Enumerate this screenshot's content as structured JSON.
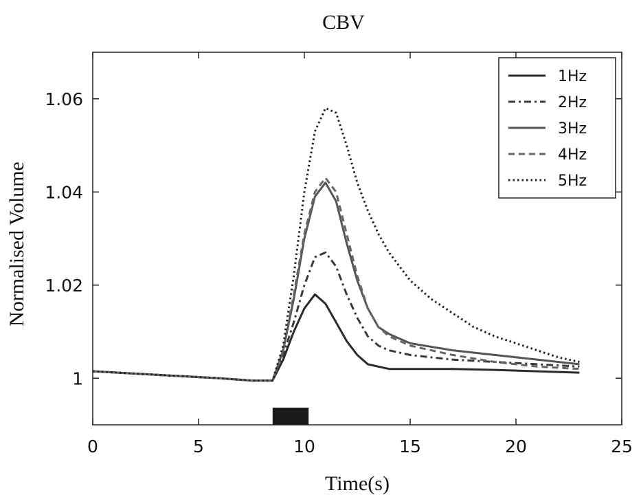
{
  "chart_data": {
    "type": "line",
    "title": "CBV",
    "xlabel": "Time(s)",
    "ylabel": "Normalised Volume",
    "xlim": [
      0,
      25
    ],
    "ylim": [
      0.99,
      1.07
    ],
    "x_ticks": [
      0,
      5,
      10,
      15,
      20,
      25
    ],
    "x_tick_labels": [
      "0",
      "5",
      "10",
      "15",
      "20",
      "25"
    ],
    "y_ticks": [
      1.0,
      1.02,
      1.04,
      1.06
    ],
    "y_tick_labels": [
      "1",
      "1.02",
      "1.04",
      "1.06"
    ],
    "grid": false,
    "legend": "top-right",
    "stimulus": {
      "start": 8.5,
      "end": 10.2
    },
    "series": [
      {
        "name": "1Hz",
        "dash": "solid",
        "color": "#2a2a2a",
        "x": [
          0,
          2,
          4,
          6,
          7.5,
          8.5,
          9.0,
          9.5,
          10.0,
          10.5,
          11.0,
          11.5,
          12.0,
          12.5,
          13.0,
          13.5,
          14.0,
          15,
          17,
          19,
          21,
          23
        ],
        "y": [
          1.0015,
          1.001,
          1.0005,
          1.0,
          0.9995,
          0.9995,
          1.004,
          1.01,
          1.015,
          1.018,
          1.016,
          1.012,
          1.008,
          1.005,
          1.003,
          1.0025,
          1.002,
          1.002,
          1.002,
          1.0018,
          1.0015,
          1.0012
        ]
      },
      {
        "name": "2Hz",
        "dash": "dashdot",
        "color": "#3a3a3a",
        "x": [
          0,
          2,
          4,
          6,
          7.5,
          8.5,
          9.0,
          9.5,
          10.0,
          10.5,
          11.0,
          11.5,
          12.0,
          12.5,
          13.0,
          13.5,
          14.0,
          15,
          17,
          19,
          21,
          23
        ],
        "y": [
          1.0015,
          1.001,
          1.0005,
          1.0,
          0.9995,
          0.9995,
          1.005,
          1.012,
          1.02,
          1.026,
          1.027,
          1.024,
          1.018,
          1.013,
          1.009,
          1.007,
          1.006,
          1.005,
          1.004,
          1.0035,
          1.003,
          1.0025
        ]
      },
      {
        "name": "3Hz",
        "dash": "solid",
        "color": "#555555",
        "x": [
          0,
          2,
          4,
          6,
          7.5,
          8.5,
          9.0,
          9.5,
          10.0,
          10.5,
          11.0,
          11.5,
          12.0,
          12.5,
          13.0,
          13.5,
          14.0,
          15,
          17,
          19,
          21,
          23
        ],
        "y": [
          1.0015,
          1.001,
          1.0005,
          1.0,
          0.9995,
          0.9995,
          1.006,
          1.017,
          1.03,
          1.039,
          1.042,
          1.038,
          1.029,
          1.021,
          1.015,
          1.011,
          1.0095,
          1.0075,
          1.006,
          1.005,
          1.004,
          1.003
        ]
      },
      {
        "name": "4Hz",
        "dash": "dashed",
        "color": "#666666",
        "x": [
          0,
          2,
          4,
          6,
          7.5,
          8.5,
          9.0,
          9.5,
          10.0,
          10.5,
          11.0,
          11.5,
          12.0,
          12.5,
          13.0,
          13.5,
          14.0,
          15,
          17,
          19,
          21,
          23
        ],
        "y": [
          1.0015,
          1.001,
          1.0005,
          1.0,
          0.9995,
          0.9995,
          1.006,
          1.018,
          1.031,
          1.04,
          1.043,
          1.04,
          1.031,
          1.022,
          1.015,
          1.011,
          1.009,
          1.007,
          1.005,
          1.0035,
          1.0025,
          1.002
        ]
      },
      {
        "name": "5Hz",
        "dash": "dotted",
        "color": "#222222",
        "x": [
          0,
          2,
          4,
          6,
          7.5,
          8.5,
          9.0,
          9.5,
          10.0,
          10.5,
          11.0,
          11.5,
          12.0,
          12.5,
          13.0,
          13.5,
          14.0,
          15,
          16,
          17,
          18,
          19,
          20,
          21,
          22,
          23
        ],
        "y": [
          1.0015,
          1.001,
          1.0005,
          1.0,
          0.9995,
          0.9995,
          1.007,
          1.022,
          1.04,
          1.053,
          1.058,
          1.057,
          1.05,
          1.042,
          1.036,
          1.031,
          1.027,
          1.021,
          1.017,
          1.014,
          1.011,
          1.009,
          1.0075,
          1.006,
          1.0045,
          1.0035
        ]
      }
    ]
  }
}
